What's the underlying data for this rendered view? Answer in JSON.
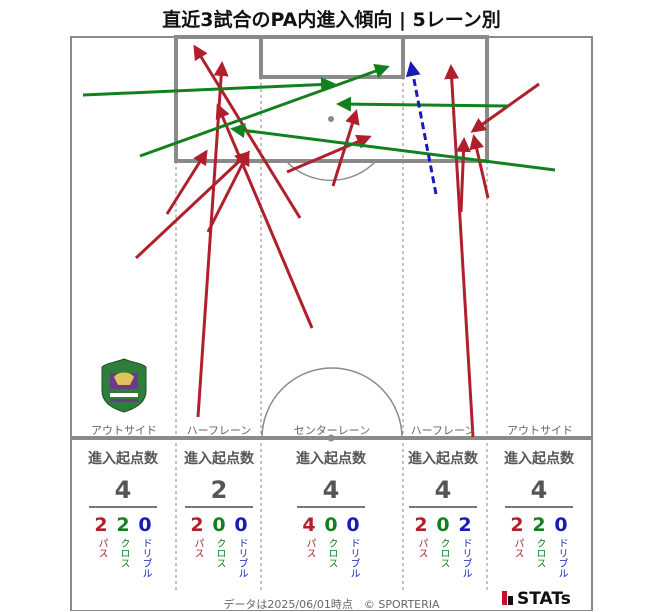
{
  "title": "直近3試合のPA内進入傾向 | 5レーン別",
  "colors": {
    "pass": "#b0202c",
    "cross": "#12801e",
    "dribble": "#1a1ab8",
    "pitch_line": "#8a8a8a"
  },
  "lanes": [
    {
      "name": "アウトサイド",
      "header": "進入起点数",
      "total": "4",
      "pass": "2",
      "cross": "2",
      "dribble": "0"
    },
    {
      "name": "ハーフレーン",
      "header": "進入起点数",
      "total": "2",
      "pass": "2",
      "cross": "0",
      "dribble": "0"
    },
    {
      "name": "センターレーン",
      "header": "進入起点数",
      "total": "4",
      "pass": "4",
      "cross": "0",
      "dribble": "0"
    },
    {
      "name": "ハーフレーン",
      "header": "進入起点数",
      "total": "4",
      "pass": "2",
      "cross": "0",
      "dribble": "2"
    },
    {
      "name": "アウトサイド",
      "header": "進入起点数",
      "total": "4",
      "pass": "2",
      "cross": "2",
      "dribble": "0"
    }
  ],
  "type_labels": {
    "pass": "パス",
    "cross": "クロス",
    "dribble": "ドリブル"
  },
  "footer": "データは2025/06/01時点　© SPORTERIA",
  "brand": "STATs",
  "crest_icon": "club-crest-icon"
}
